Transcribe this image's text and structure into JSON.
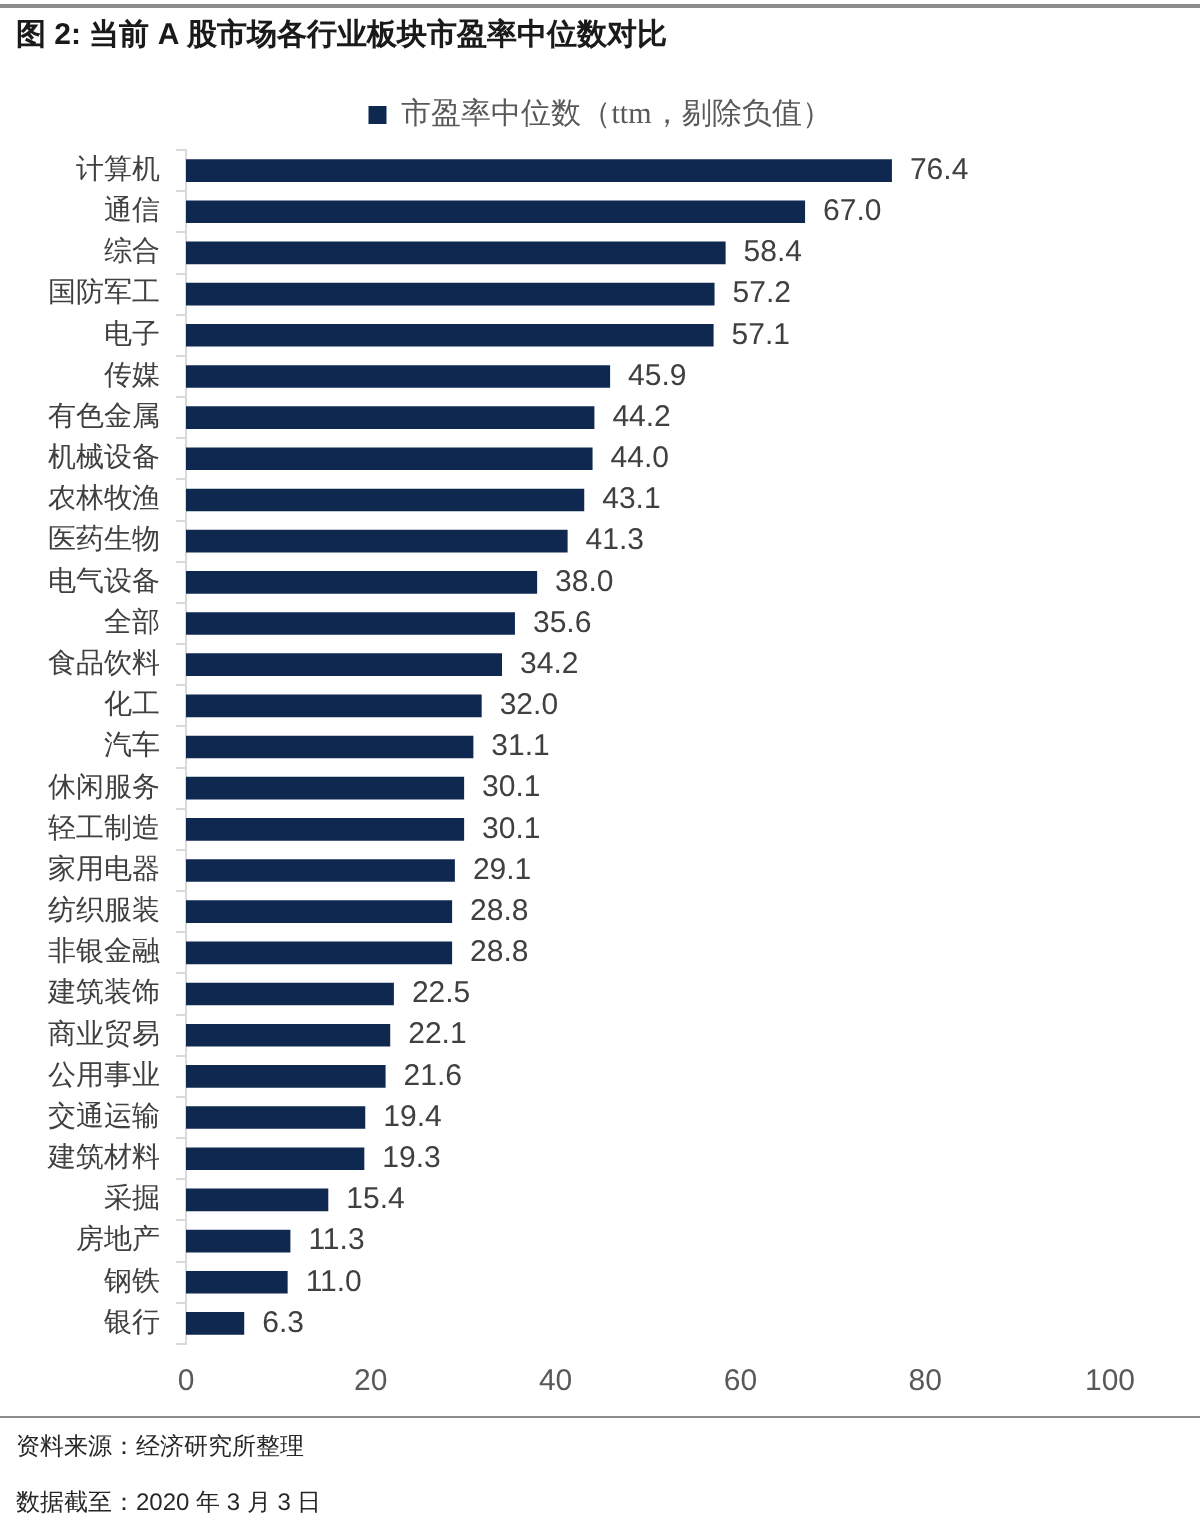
{
  "chart_data": {
    "type": "bar",
    "orientation": "horizontal",
    "title": "图 2: 当前 A 股市场各行业板块市盈率中位数对比",
    "categories": [
      "计算机",
      "通信",
      "综合",
      "国防军工",
      "电子",
      "传媒",
      "有色金属",
      "机械设备",
      "农林牧渔",
      "医药生物",
      "电气设备",
      "全部",
      "食品饮料",
      "化工",
      "汽车",
      "休闲服务",
      "轻工制造",
      "家用电器",
      "纺织服装",
      "非银金融",
      "建筑装饰",
      "商业贸易",
      "公用事业",
      "交通运输",
      "建筑材料",
      "采掘",
      "房地产",
      "钢铁",
      "银行"
    ],
    "series": [
      {
        "name": "市盈率中位数（ttm，剔除负值）",
        "color": "#0f2850",
        "values": [
          76.4,
          67.0,
          58.4,
          57.2,
          57.1,
          45.9,
          44.2,
          44.0,
          43.1,
          41.3,
          38.0,
          35.6,
          34.2,
          32.0,
          31.1,
          30.1,
          30.1,
          29.1,
          28.8,
          28.8,
          22.5,
          22.1,
          21.6,
          19.4,
          19.3,
          15.4,
          11.3,
          11.0,
          6.3
        ],
        "value_labels": [
          "76.4",
          "67.0",
          "58.4",
          "57.2",
          "57.1",
          "45.9",
          "44.2",
          "44.0",
          "43.1",
          "41.3",
          "38.0",
          "35.6",
          "34.2",
          "32.0",
          "31.1",
          "30.1",
          "30.1",
          "29.1",
          "28.8",
          "28.8",
          "22.5",
          "22.1",
          "21.6",
          "19.4",
          "19.3",
          "15.4",
          "11.3",
          "11.0",
          "6.3"
        ]
      }
    ],
    "xlim": [
      0,
      100
    ],
    "xticks": [
      0,
      20,
      40,
      60,
      80,
      100
    ],
    "grid": false,
    "legend": "top",
    "annotations": [
      "资料来源：经济研究所整理",
      "数据截至：2020 年 3 月 3 日"
    ]
  }
}
